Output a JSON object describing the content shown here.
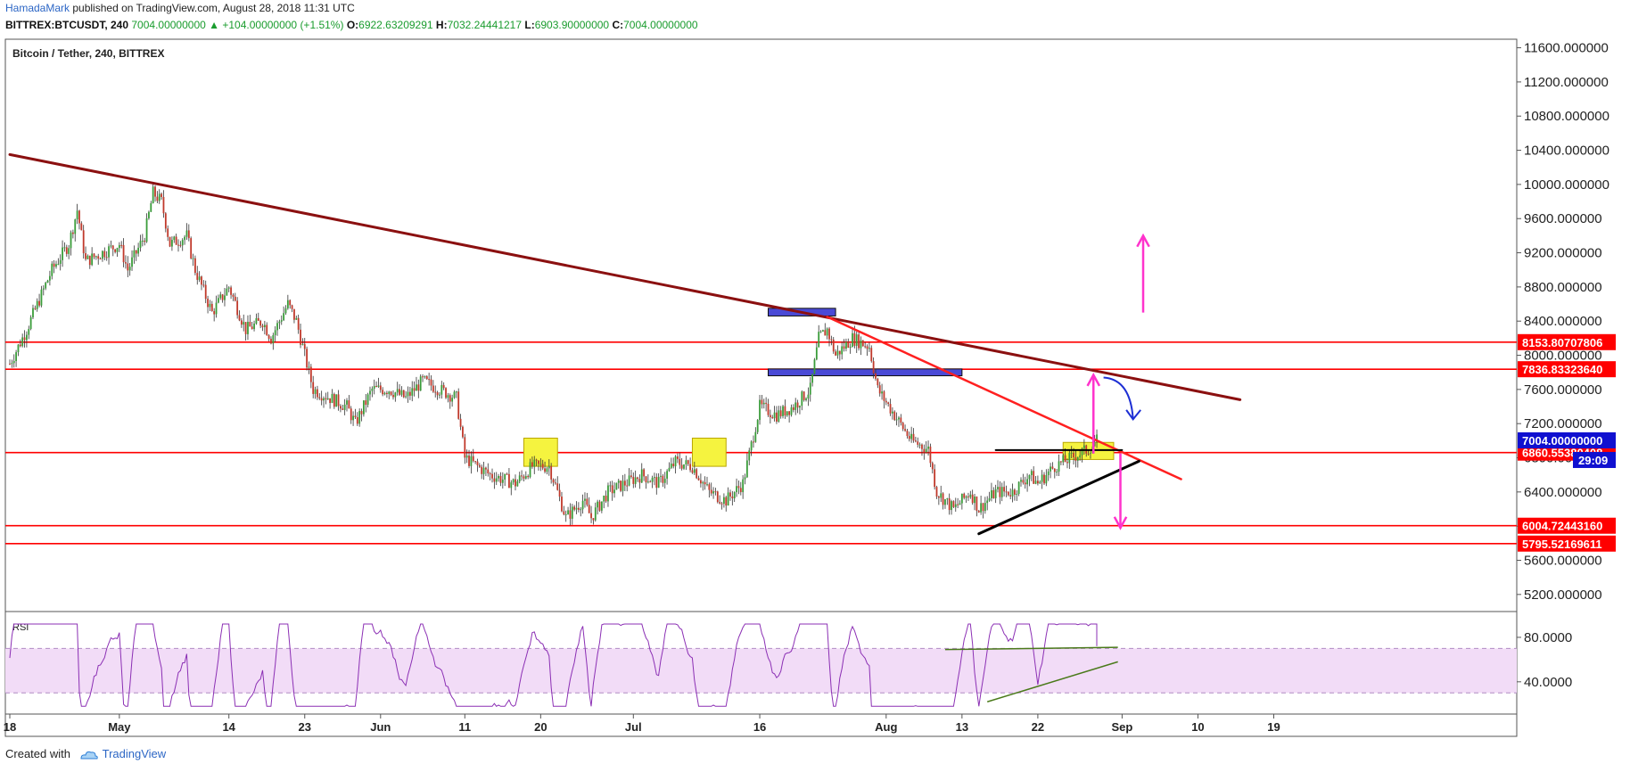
{
  "header": {
    "author": "HamadaMark",
    "published": " published on TradingView.com, August 28, 2018 11:31 UTC"
  },
  "ohlc": {
    "symbol": "BITTREX:BTCUSDT, 240",
    "last": "7004.00000000",
    "change": "▲ +104.00000000 (+1.51%)",
    "o_label": "O:",
    "o": "6922.63209291",
    "h_label": "H:",
    "h": "7032.24441217",
    "l_label": "L:",
    "l": "6903.90000000",
    "c_label": "C:",
    "c": "7004.00000000"
  },
  "footer": {
    "created": "Created with",
    "brand": "TradingView"
  },
  "colors": {
    "up": "#3a9c3a",
    "down": "#c0392b",
    "hline": "#ff0000",
    "trendline": "#8b1010",
    "rsi": "#8b2fb4",
    "rsi_band": "#f2dcf7",
    "blue_box": "#4a4ad6",
    "yellow_box": "#f5f33f",
    "magenta": "#ff33cc",
    "arrow_blue": "#1d2fd4",
    "last_tag": "#1010d0"
  },
  "chart_data": {
    "type": "candlestick",
    "title": "Bitcoin / Tether, 240, BITTREX",
    "ylim": [
      5000,
      11700
    ],
    "y_ticks": [
      "11600.000000",
      "11200.000000",
      "10800.000000",
      "10400.000000",
      "10000.000000",
      "9600.000000",
      "9200.000000",
      "8800.000000",
      "8400.000000",
      "8000.000000",
      "7600.000000",
      "7200.000000",
      "6800.000000",
      "6400.000000",
      "6000.000000",
      "5600.000000",
      "5200.000000"
    ],
    "y_tick_values": [
      11600,
      11200,
      10800,
      10400,
      10000,
      9600,
      9200,
      8800,
      8400,
      8000,
      7600,
      7200,
      6800,
      6400,
      6000,
      5600,
      5200
    ],
    "x_ticks": [
      "18",
      "May",
      "14",
      "23",
      "Jun",
      "11",
      "20",
      "Jul",
      "16",
      "Aug",
      "13",
      "22",
      "Sep",
      "10",
      "19"
    ],
    "x_tick_days": [
      0,
      13,
      26,
      35,
      44,
      54,
      63,
      74,
      89,
      104,
      113,
      122,
      132,
      141,
      150
    ],
    "x_axis_origin": "2018-04-18",
    "price_path": [
      [
        0,
        7900
      ],
      [
        2,
        8300
      ],
      [
        5,
        9000
      ],
      [
        7,
        9300
      ],
      [
        8,
        9700
      ],
      [
        9,
        9100
      ],
      [
        11,
        9200
      ],
      [
        13,
        9300
      ],
      [
        14,
        9000
      ],
      [
        16,
        9400
      ],
      [
        17,
        9900
      ],
      [
        18,
        9800
      ],
      [
        19,
        9300
      ],
      [
        21,
        9400
      ],
      [
        22,
        9000
      ],
      [
        24,
        8500
      ],
      [
        26,
        8800
      ],
      [
        28,
        8300
      ],
      [
        30,
        8400
      ],
      [
        31,
        8200
      ],
      [
        33,
        8600
      ],
      [
        34,
        8400
      ],
      [
        36,
        7600
      ],
      [
        38,
        7500
      ],
      [
        40,
        7400
      ],
      [
        41,
        7200
      ],
      [
        43,
        7600
      ],
      [
        45,
        7600
      ],
      [
        47,
        7500
      ],
      [
        49,
        7700
      ],
      [
        51,
        7600
      ],
      [
        53,
        7500
      ],
      [
        54,
        6800
      ],
      [
        57,
        6600
      ],
      [
        60,
        6500
      ],
      [
        62,
        6700
      ],
      [
        64,
        6700
      ],
      [
        66,
        6100
      ],
      [
        68,
        6300
      ],
      [
        69,
        6100
      ],
      [
        71,
        6400
      ],
      [
        73,
        6500
      ],
      [
        75,
        6600
      ],
      [
        77,
        6500
      ],
      [
        79,
        6750
      ],
      [
        81,
        6700
      ],
      [
        83,
        6400
      ],
      [
        85,
        6300
      ],
      [
        87,
        6500
      ],
      [
        89,
        7400
      ],
      [
        91,
        7300
      ],
      [
        93,
        7400
      ],
      [
        95,
        7600
      ],
      [
        96,
        8200
      ],
      [
        97,
        8300
      ],
      [
        98,
        8000
      ],
      [
        100,
        8200
      ],
      [
        102,
        8100
      ],
      [
        103,
        7600
      ],
      [
        105,
        7300
      ],
      [
        107,
        7000
      ],
      [
        109,
        6900
      ],
      [
        110,
        6400
      ],
      [
        112,
        6200
      ],
      [
        114,
        6400
      ],
      [
        115,
        6200
      ],
      [
        117,
        6400
      ],
      [
        119,
        6400
      ],
      [
        121,
        6600
      ],
      [
        122,
        6500
      ],
      [
        124,
        6700
      ],
      [
        126,
        6800
      ],
      [
        128,
        6900
      ],
      [
        129,
        7004
      ]
    ],
    "horizontal_levels": [
      "8153.80707806",
      "7836.83323640",
      "6860.55380408",
      "6004.72443160",
      "5795.52169611"
    ],
    "level_values": [
      8153.8,
      7836.8,
      6860.6,
      6004.7,
      5795.5
    ],
    "last_price": "7004.00000000",
    "last_price_value": 7004,
    "countdown": "29:09",
    "trendline_long": [
      [
        0,
        10350
      ],
      [
        146,
        7480
      ]
    ],
    "trendline_short": [
      [
        97,
        8450
      ],
      [
        139,
        6550
      ]
    ],
    "support_line": [
      [
        115,
        5910
      ],
      [
        134,
        6760
      ]
    ],
    "flat_line": [
      [
        117,
        6890
      ],
      [
        132,
        6890
      ]
    ],
    "blue_boxes": [
      [
        [
          90,
          98,
          8460,
          8550
        ]
      ],
      [
        [
          90,
          113,
          7760,
          7840
        ]
      ]
    ],
    "yellow_boxes": [
      [
        61,
        65,
        6700,
        7030
      ],
      [
        81,
        85,
        6700,
        7030
      ],
      [
        125,
        131,
        6780,
        6980
      ]
    ],
    "rsi": {
      "label": "RSI",
      "ylim": [
        15,
        100
      ],
      "ticks": [
        "80.0000",
        "40.0000"
      ],
      "tick_values": [
        80,
        40
      ],
      "band": [
        30,
        70
      ]
    }
  }
}
